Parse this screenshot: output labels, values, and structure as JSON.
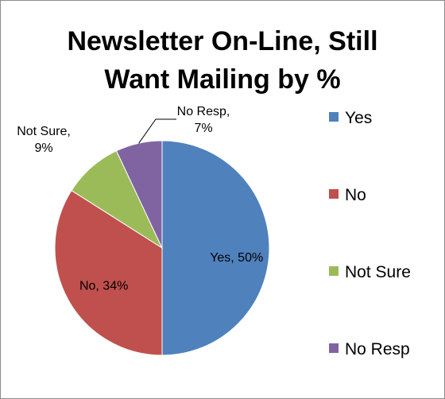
{
  "chart_data": {
    "type": "pie",
    "title_lines": [
      "Newsletter On-Line, Still",
      "Want Mailing by %"
    ],
    "categories": [
      "Yes",
      "No",
      "Not Sure",
      "No Resp"
    ],
    "values": [
      50,
      34,
      9,
      7
    ],
    "data_labels": [
      [
        "Yes, 50%"
      ],
      [
        "No, 34%"
      ],
      [
        "Not Sure,",
        "9%"
      ],
      [
        "No Resp,",
        "7%"
      ]
    ],
    "colors": [
      "#4f81bd",
      "#c0504d",
      "#9bbb59",
      "#8064a2"
    ],
    "legend": {
      "position": "right",
      "entries": [
        "Yes",
        "No",
        "Not Sure",
        "No Resp"
      ]
    }
  }
}
